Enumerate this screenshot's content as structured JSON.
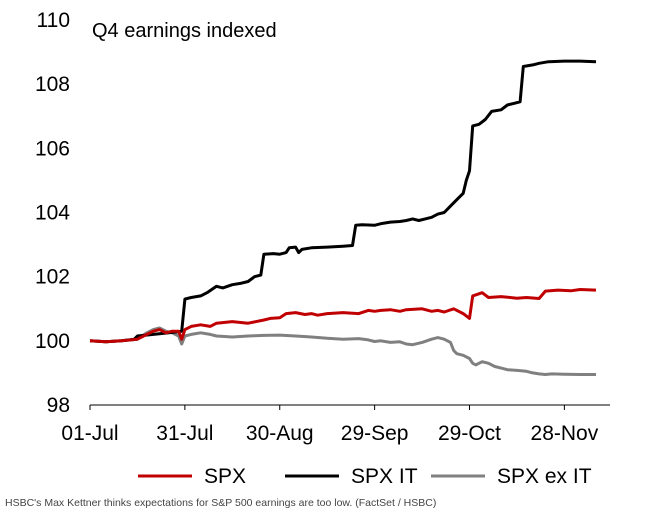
{
  "chart_data": {
    "type": "line",
    "title": "Q4 earnings indexed",
    "xlabel": "",
    "ylabel": "",
    "ylim": [
      98,
      110
    ],
    "yticks": [
      98,
      100,
      102,
      104,
      106,
      108,
      110
    ],
    "xlim": [
      0,
      165
    ],
    "xticks": [
      {
        "label": "01-Jul",
        "day": 0
      },
      {
        "label": "31-Jul",
        "day": 30
      },
      {
        "label": "30-Aug",
        "day": 60
      },
      {
        "label": "29-Sep",
        "day": 90
      },
      {
        "label": "29-Oct",
        "day": 120
      },
      {
        "label": "28-Nov",
        "day": 150
      }
    ],
    "legend_position": "bottom",
    "series": [
      {
        "name": "SPX",
        "color": "#c00000",
        "points": [
          [
            0,
            100
          ],
          [
            5,
            99.97
          ],
          [
            10,
            100
          ],
          [
            15,
            100.05
          ],
          [
            18,
            100.2
          ],
          [
            20,
            100.3
          ],
          [
            22,
            100.35
          ],
          [
            24,
            100.25
          ],
          [
            26,
            100.3
          ],
          [
            28,
            100.3
          ],
          [
            29,
            100.05
          ],
          [
            30,
            100.35
          ],
          [
            32,
            100.45
          ],
          [
            35,
            100.5
          ],
          [
            38,
            100.45
          ],
          [
            40,
            100.55
          ],
          [
            45,
            100.6
          ],
          [
            50,
            100.55
          ],
          [
            55,
            100.65
          ],
          [
            57,
            100.7
          ],
          [
            60,
            100.72
          ],
          [
            62,
            100.85
          ],
          [
            65,
            100.88
          ],
          [
            68,
            100.82
          ],
          [
            70,
            100.85
          ],
          [
            72,
            100.8
          ],
          [
            75,
            100.85
          ],
          [
            80,
            100.88
          ],
          [
            85,
            100.85
          ],
          [
            88,
            100.95
          ],
          [
            90,
            100.92
          ],
          [
            92,
            100.95
          ],
          [
            95,
            100.97
          ],
          [
            98,
            100.92
          ],
          [
            100,
            100.97
          ],
          [
            105,
            101
          ],
          [
            108,
            100.92
          ],
          [
            110,
            100.95
          ],
          [
            112,
            100.9
          ],
          [
            115,
            101
          ],
          [
            118,
            100.85
          ],
          [
            120,
            100.7
          ],
          [
            121,
            101.4
          ],
          [
            124,
            101.5
          ],
          [
            126,
            101.35
          ],
          [
            130,
            101.38
          ],
          [
            135,
            101.33
          ],
          [
            138,
            101.35
          ],
          [
            142,
            101.32
          ],
          [
            144,
            101.55
          ],
          [
            148,
            101.58
          ],
          [
            152,
            101.56
          ],
          [
            155,
            101.6
          ],
          [
            160,
            101.58
          ]
        ]
      },
      {
        "name": "SPX IT",
        "color": "#000000",
        "points": [
          [
            0,
            100
          ],
          [
            5,
            99.97
          ],
          [
            10,
            100
          ],
          [
            14,
            100.05
          ],
          [
            15,
            100.15
          ],
          [
            20,
            100.2
          ],
          [
            25,
            100.25
          ],
          [
            29,
            100.3
          ],
          [
            30,
            101.3
          ],
          [
            32,
            101.35
          ],
          [
            35,
            101.4
          ],
          [
            37,
            101.5
          ],
          [
            40,
            101.7
          ],
          [
            42,
            101.65
          ],
          [
            45,
            101.75
          ],
          [
            48,
            101.8
          ],
          [
            50,
            101.85
          ],
          [
            52,
            102.0
          ],
          [
            54,
            102.05
          ],
          [
            55,
            102.7
          ],
          [
            58,
            102.72
          ],
          [
            60,
            102.7
          ],
          [
            62,
            102.75
          ],
          [
            63,
            102.9
          ],
          [
            65,
            102.92
          ],
          [
            66,
            102.75
          ],
          [
            67,
            102.85
          ],
          [
            70,
            102.9
          ],
          [
            75,
            102.92
          ],
          [
            80,
            102.95
          ],
          [
            83,
            102.97
          ],
          [
            84,
            103.6
          ],
          [
            86,
            103.62
          ],
          [
            90,
            103.6
          ],
          [
            92,
            103.65
          ],
          [
            95,
            103.7
          ],
          [
            98,
            103.72
          ],
          [
            100,
            103.75
          ],
          [
            102,
            103.8
          ],
          [
            104,
            103.75
          ],
          [
            106,
            103.8
          ],
          [
            108,
            103.85
          ],
          [
            110,
            103.95
          ],
          [
            112,
            104.0
          ],
          [
            114,
            104.2
          ],
          [
            116,
            104.4
          ],
          [
            118,
            104.6
          ],
          [
            119,
            105.0
          ],
          [
            120,
            105.3
          ],
          [
            121,
            106.7
          ],
          [
            123,
            106.75
          ],
          [
            125,
            106.9
          ],
          [
            127,
            107.15
          ],
          [
            130,
            107.2
          ],
          [
            132,
            107.35
          ],
          [
            134,
            107.4
          ],
          [
            136,
            107.45
          ],
          [
            137,
            108.55
          ],
          [
            140,
            108.6
          ],
          [
            142,
            108.65
          ],
          [
            145,
            108.7
          ],
          [
            150,
            108.72
          ],
          [
            155,
            108.72
          ],
          [
            160,
            108.7
          ]
        ]
      },
      {
        "name": "SPX ex IT",
        "color": "#808080",
        "points": [
          [
            0,
            100
          ],
          [
            5,
            99.97
          ],
          [
            10,
            100
          ],
          [
            15,
            100.05
          ],
          [
            18,
            100.25
          ],
          [
            20,
            100.35
          ],
          [
            22,
            100.4
          ],
          [
            24,
            100.3
          ],
          [
            26,
            100.25
          ],
          [
            28,
            100.15
          ],
          [
            29,
            99.9
          ],
          [
            30,
            100.15
          ],
          [
            32,
            100.2
          ],
          [
            35,
            100.25
          ],
          [
            38,
            100.2
          ],
          [
            40,
            100.15
          ],
          [
            45,
            100.12
          ],
          [
            50,
            100.15
          ],
          [
            55,
            100.17
          ],
          [
            60,
            100.18
          ],
          [
            65,
            100.15
          ],
          [
            70,
            100.12
          ],
          [
            75,
            100.08
          ],
          [
            80,
            100.05
          ],
          [
            85,
            100.07
          ],
          [
            88,
            100.03
          ],
          [
            90,
            99.98
          ],
          [
            92,
            100.0
          ],
          [
            95,
            99.95
          ],
          [
            98,
            99.97
          ],
          [
            100,
            99.9
          ],
          [
            102,
            99.88
          ],
          [
            105,
            99.95
          ],
          [
            108,
            100.05
          ],
          [
            110,
            100.1
          ],
          [
            112,
            100.05
          ],
          [
            114,
            99.95
          ],
          [
            115,
            99.7
          ],
          [
            116,
            99.6
          ],
          [
            118,
            99.55
          ],
          [
            120,
            99.45
          ],
          [
            121,
            99.3
          ],
          [
            122,
            99.25
          ],
          [
            124,
            99.35
          ],
          [
            126,
            99.3
          ],
          [
            128,
            99.2
          ],
          [
            130,
            99.15
          ],
          [
            132,
            99.1
          ],
          [
            135,
            99.08
          ],
          [
            138,
            99.05
          ],
          [
            140,
            99.0
          ],
          [
            142,
            98.97
          ],
          [
            144,
            98.95
          ],
          [
            146,
            98.97
          ],
          [
            150,
            98.96
          ],
          [
            155,
            98.95
          ],
          [
            160,
            98.95
          ]
        ]
      }
    ]
  },
  "caption": "HSBC's Max Kettner thinks expectations for S&P 500 earnings are too low. (FactSet / HSBC)"
}
